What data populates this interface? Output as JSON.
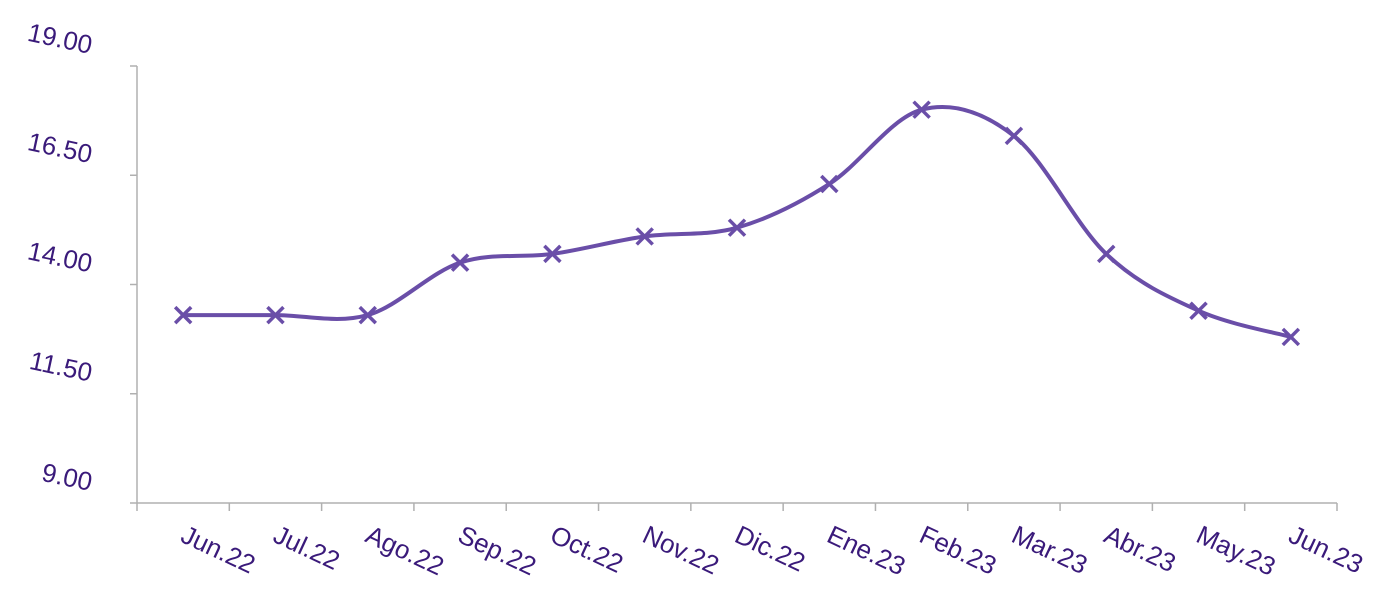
{
  "chart_data": {
    "type": "line",
    "categories": [
      "Jun.22",
      "Jul.22",
      "Ago.22",
      "Sep.22",
      "Oct.22",
      "Nov.22",
      "Dic.22",
      "Ene.23",
      "Feb.23",
      "Mar.23",
      "Abr.23",
      "May.23",
      "Jun.23"
    ],
    "values": [
      13.3,
      13.3,
      13.3,
      14.5,
      14.7,
      15.1,
      15.3,
      16.3,
      18.0,
      17.4,
      14.7,
      13.4,
      12.8
    ],
    "color": "#6a4ea8",
    "ylim": [
      9,
      19
    ],
    "yticks": [
      {
        "value": 9,
        "label": "9.00"
      },
      {
        "value": 11.5,
        "label": "11.50"
      },
      {
        "value": 14,
        "label": "14.00"
      },
      {
        "value": 16.5,
        "label": "16.50"
      },
      {
        "value": 19,
        "label": "19.00"
      }
    ],
    "smooth": true
  }
}
